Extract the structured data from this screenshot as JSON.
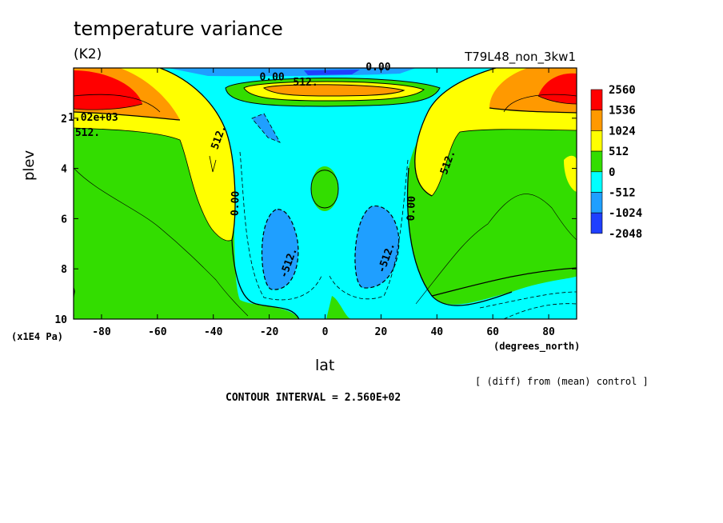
{
  "figure": {
    "title": "temperature variance",
    "units": "(K2)",
    "experiment": "T79L48_non_3kw1",
    "y_unit": "(x1E4 Pa)",
    "x_unit": "(degrees_north)",
    "note": "[ (diff) from (mean) control ]",
    "contour_interval": "CONTOUR INTERVAL = 2.560E+02"
  },
  "chart_data": {
    "type": "heatmap",
    "title": "temperature variance",
    "xlabel": "lat",
    "ylabel": "plev",
    "xlim": [
      -90,
      90
    ],
    "ylim": [
      0,
      10
    ],
    "y_inverted": true,
    "x_ticks": [
      -80,
      -60,
      -40,
      -20,
      0,
      20,
      40,
      60,
      80
    ],
    "y_ticks": [
      2,
      4,
      6,
      8,
      10
    ],
    "colorbar": {
      "levels": [
        "2560",
        "1536",
        "1024",
        "512",
        "0",
        "-512",
        "-1024",
        "-2048"
      ],
      "colors": [
        "#ff0000",
        "#ff9900",
        "#ffff00",
        "#33dd00",
        "#00ffff",
        "#1f9fff",
        "#1f3fff"
      ]
    },
    "contour_labels": [
      {
        "text": "1.02e+03",
        "lat": -83,
        "plev": 2.1
      },
      {
        "text": "512.",
        "lat": -85,
        "plev": 2.7
      },
      {
        "text": "512.",
        "lat": -37,
        "plev": 2.8
      },
      {
        "text": "512.",
        "lat": 45,
        "plev": 3.8
      },
      {
        "text": "0.00",
        "lat": -31,
        "plev": 5.4
      },
      {
        "text": "0.00",
        "lat": 32,
        "plev": 5.6
      },
      {
        "text": "-512.",
        "lat": -12,
        "plev": 7.8
      },
      {
        "text": "-512.",
        "lat": 23,
        "plev": 7.6
      },
      {
        "text": "0.00",
        "lat": -19,
        "plev": 0.5
      },
      {
        "text": "512.",
        "lat": -7,
        "plev": 0.7
      },
      {
        "text": "0.00",
        "lat": 19,
        "plev": 0.1
      }
    ]
  }
}
